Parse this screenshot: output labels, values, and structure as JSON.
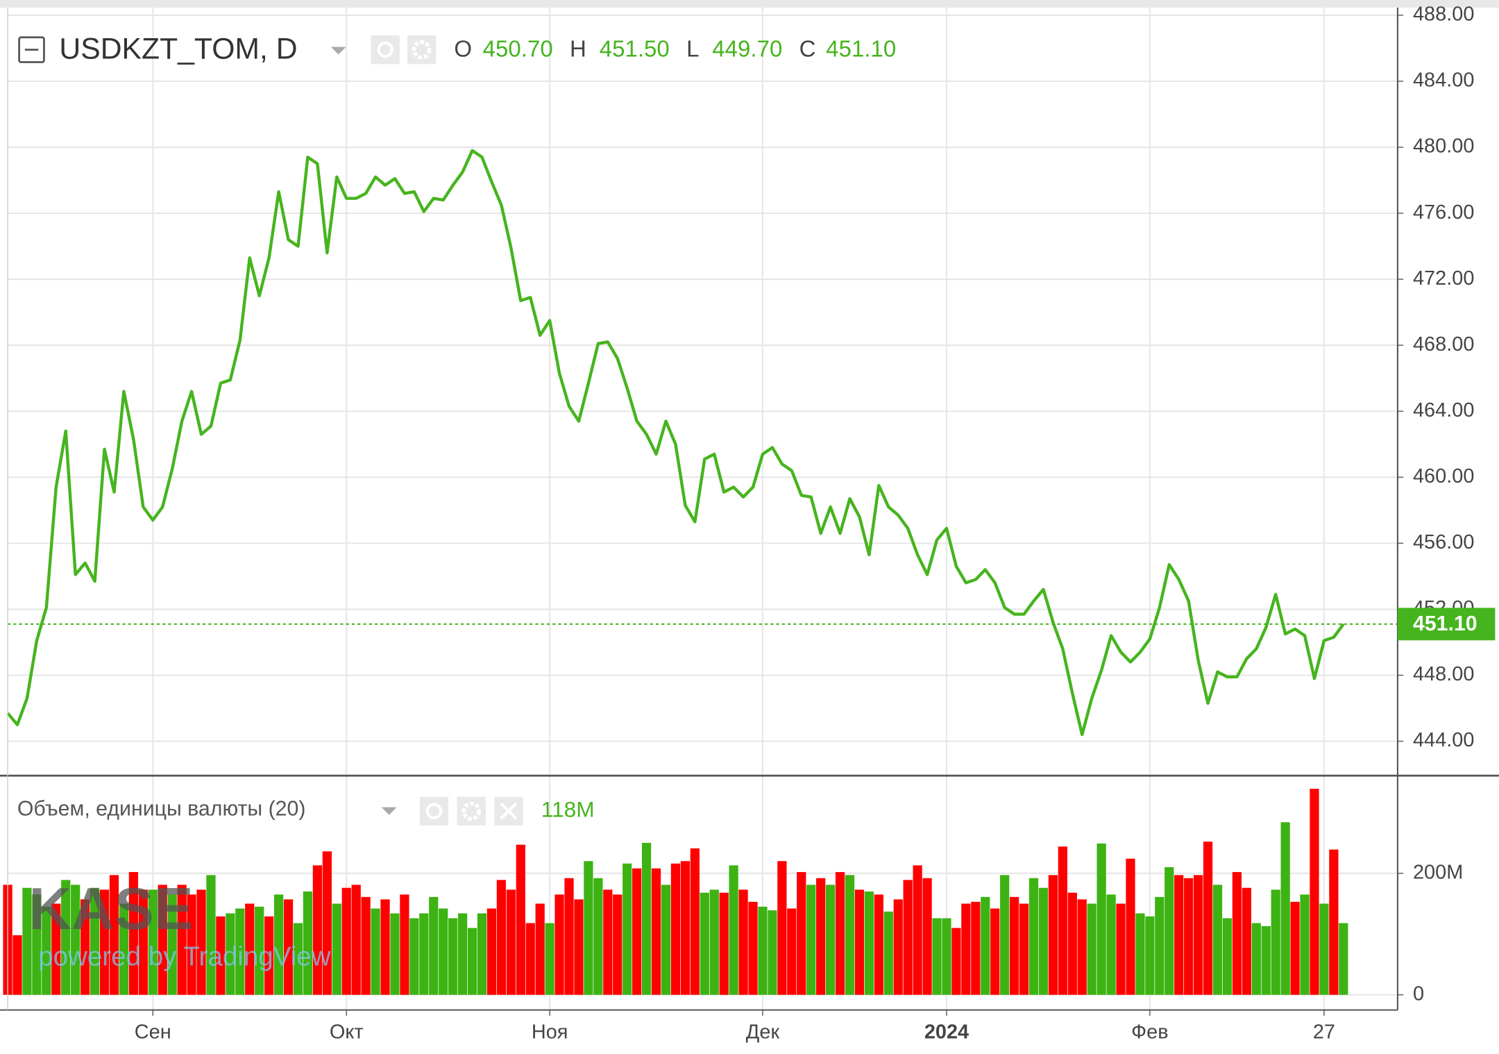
{
  "chart_data": [
    {
      "type": "line",
      "title": "USDKZT_TOM, D",
      "ohlc": [
        {
          "key": "O",
          "value": "450.70"
        },
        {
          "key": "H",
          "value": "451.50"
        },
        {
          "key": "L",
          "value": "449.70"
        },
        {
          "key": "C",
          "value": "451.10"
        }
      ],
      "color": "#46b41e",
      "values": [
        445.7,
        445.0,
        446.6,
        450.1,
        452.1,
        459.4,
        462.8,
        454.1,
        454.8,
        453.7,
        461.7,
        459.1,
        465.2,
        462.3,
        458.2,
        457.4,
        458.2,
        460.5,
        463.4,
        465.2,
        462.6,
        463.1,
        465.7,
        465.9,
        468.3,
        473.3,
        471.0,
        473.3,
        477.3,
        474.4,
        474.0,
        479.4,
        479.0,
        473.6,
        478.2,
        476.9,
        476.9,
        477.2,
        478.2,
        477.7,
        478.1,
        477.2,
        477.3,
        476.1,
        476.9,
        476.8,
        477.7,
        478.5,
        479.8,
        479.4,
        477.9,
        476.5,
        473.9,
        470.7,
        470.9,
        468.6,
        469.5,
        466.3,
        464.3,
        463.4,
        465.7,
        468.1,
        468.2,
        467.2,
        465.4,
        463.4,
        462.6,
        461.4,
        463.4,
        462.0,
        458.3,
        457.3,
        461.1,
        461.4,
        459.1,
        459.4,
        458.8,
        459.4,
        461.4,
        461.8,
        460.8,
        460.4,
        458.9,
        458.8,
        456.6,
        458.2,
        456.6,
        458.7,
        457.6,
        455.3,
        459.5,
        458.2,
        457.7,
        456.9,
        455.3,
        454.1,
        456.2,
        456.9,
        454.6,
        453.6,
        453.8,
        454.4,
        453.6,
        452.1,
        451.7,
        451.7,
        452.5,
        453.2,
        451.2,
        449.6,
        446.9,
        444.4,
        446.6,
        448.3,
        450.4,
        449.4,
        448.8,
        449.4,
        450.2,
        452.1,
        454.7,
        453.8,
        452.5,
        448.9,
        446.3,
        448.2,
        447.9,
        447.9,
        449.0,
        449.6,
        450.9,
        452.9,
        450.5,
        450.8,
        450.4,
        447.8,
        450.1,
        450.3,
        451.1
      ],
      "last_price": {
        "value": 451.1,
        "label": "451.10"
      },
      "xlim": [
        0,
        143.6
      ],
      "xticks": [
        {
          "value": 15,
          "label": "Сен"
        },
        {
          "value": 35,
          "label": "Окт"
        },
        {
          "value": 56,
          "label": "Ноя"
        },
        {
          "value": 78,
          "label": "Дек"
        },
        {
          "value": 97,
          "label": "2024"
        },
        {
          "value": 118,
          "label": "Фев"
        },
        {
          "value": 136,
          "label": "27"
        }
      ],
      "ylim": [
        441.97,
        488.46
      ],
      "yticks": [
        {
          "value": 444,
          "label": "444.00"
        },
        {
          "value": 448,
          "label": "448.00"
        },
        {
          "value": 452,
          "label": "452.00"
        },
        {
          "value": 456,
          "label": "456.00"
        },
        {
          "value": 460,
          "label": "460.00"
        },
        {
          "value": 464,
          "label": "464.00"
        },
        {
          "value": 468,
          "label": "468.00"
        },
        {
          "value": 472,
          "label": "472.00"
        },
        {
          "value": 476,
          "label": "476.00"
        },
        {
          "value": 480,
          "label": "480.00"
        },
        {
          "value": 484,
          "label": "484.00"
        },
        {
          "value": 488,
          "label": "488.00"
        }
      ],
      "grid": true
    },
    {
      "type": "bar",
      "title": "Объем, единицы валюты (20)",
      "last_value_label": "118M",
      "values": [
        181,
        98,
        176,
        165,
        145,
        150,
        189,
        181,
        157,
        176,
        173,
        197,
        150,
        202,
        173,
        173,
        181,
        165,
        181,
        165,
        173,
        197,
        129,
        134,
        142,
        150,
        145,
        129,
        165,
        157,
        118,
        170,
        213,
        236,
        150,
        176,
        181,
        161,
        142,
        157,
        134,
        165,
        126,
        134,
        161,
        142,
        126,
        134,
        110,
        134,
        142,
        189,
        173,
        247,
        118,
        150,
        118,
        165,
        192,
        157,
        220,
        192,
        173,
        165,
        216,
        208,
        250,
        208,
        181,
        216,
        220,
        241,
        168,
        173,
        168,
        213,
        173,
        153,
        145,
        139,
        220,
        142,
        202,
        181,
        192,
        181,
        202,
        197,
        173,
        170,
        165,
        137,
        157,
        189,
        213,
        192,
        126,
        126,
        110,
        150,
        153,
        161,
        142,
        197,
        161,
        150,
        192,
        176,
        197,
        244,
        168,
        157,
        150,
        249,
        165,
        150,
        224,
        134,
        129,
        161,
        210,
        197,
        192,
        197,
        252,
        181,
        126,
        202,
        176,
        118,
        113,
        173,
        284,
        153,
        165,
        339,
        150,
        239,
        118
      ],
      "bar_colors": [
        "#ff0000",
        "#ff0000",
        "#3cb312",
        "#3cb312",
        "#3cb312",
        "#ff0000",
        "#3cb312",
        "#3cb312",
        "#ff0000",
        "#3cb312",
        "#ff0000",
        "#ff0000",
        "#3cb312",
        "#ff0000",
        "#ff0000",
        "#3cb312",
        "#ff0000",
        "#3cb312",
        "#ff0000",
        "#ff0000",
        "#ff0000",
        "#3cb312",
        "#ff0000",
        "#3cb312",
        "#3cb312",
        "#ff0000",
        "#3cb312",
        "#ff0000",
        "#3cb312",
        "#ff0000",
        "#3cb312",
        "#3cb312",
        "#ff0000",
        "#ff0000",
        "#3cb312",
        "#ff0000",
        "#ff0000",
        "#ff0000",
        "#3cb312",
        "#ff0000",
        "#3cb312",
        "#ff0000",
        "#3cb312",
        "#3cb312",
        "#3cb312",
        "#3cb312",
        "#3cb312",
        "#3cb312",
        "#3cb312",
        "#3cb312",
        "#ff0000",
        "#ff0000",
        "#ff0000",
        "#ff0000",
        "#ff0000",
        "#ff0000",
        "#3cb312",
        "#ff0000",
        "#ff0000",
        "#ff0000",
        "#3cb312",
        "#3cb312",
        "#ff0000",
        "#ff0000",
        "#3cb312",
        "#ff0000",
        "#3cb312",
        "#ff0000",
        "#3cb312",
        "#ff0000",
        "#ff0000",
        "#ff0000",
        "#3cb312",
        "#3cb312",
        "#ff0000",
        "#3cb312",
        "#ff0000",
        "#ff0000",
        "#3cb312",
        "#3cb312",
        "#ff0000",
        "#ff0000",
        "#ff0000",
        "#3cb312",
        "#ff0000",
        "#3cb312",
        "#ff0000",
        "#3cb312",
        "#ff0000",
        "#3cb312",
        "#ff0000",
        "#3cb312",
        "#ff0000",
        "#ff0000",
        "#ff0000",
        "#ff0000",
        "#3cb312",
        "#3cb312",
        "#ff0000",
        "#ff0000",
        "#ff0000",
        "#3cb312",
        "#ff0000",
        "#3cb312",
        "#ff0000",
        "#ff0000",
        "#3cb312",
        "#3cb312",
        "#ff0000",
        "#ff0000",
        "#ff0000",
        "#ff0000",
        "#3cb312",
        "#3cb312",
        "#3cb312",
        "#ff0000",
        "#ff0000",
        "#3cb312",
        "#3cb312",
        "#3cb312",
        "#3cb312",
        "#ff0000",
        "#ff0000",
        "#ff0000",
        "#ff0000",
        "#3cb312",
        "#3cb312",
        "#ff0000",
        "#ff0000",
        "#3cb312",
        "#3cb312",
        "#3cb312",
        "#3cb312",
        "#ff0000",
        "#3cb312",
        "#ff0000",
        "#3cb312",
        "#ff0000",
        "#3cb312"
      ],
      "value_color": "#46b41e",
      "ylim": [
        -25,
        359
      ],
      "yticks": [
        0,
        {
          "value": 200,
          "label": "200M"
        }
      ],
      "grid": true
    }
  ],
  "watermark": {
    "brand": "KASE",
    "tagline": "powered by TradingView"
  }
}
